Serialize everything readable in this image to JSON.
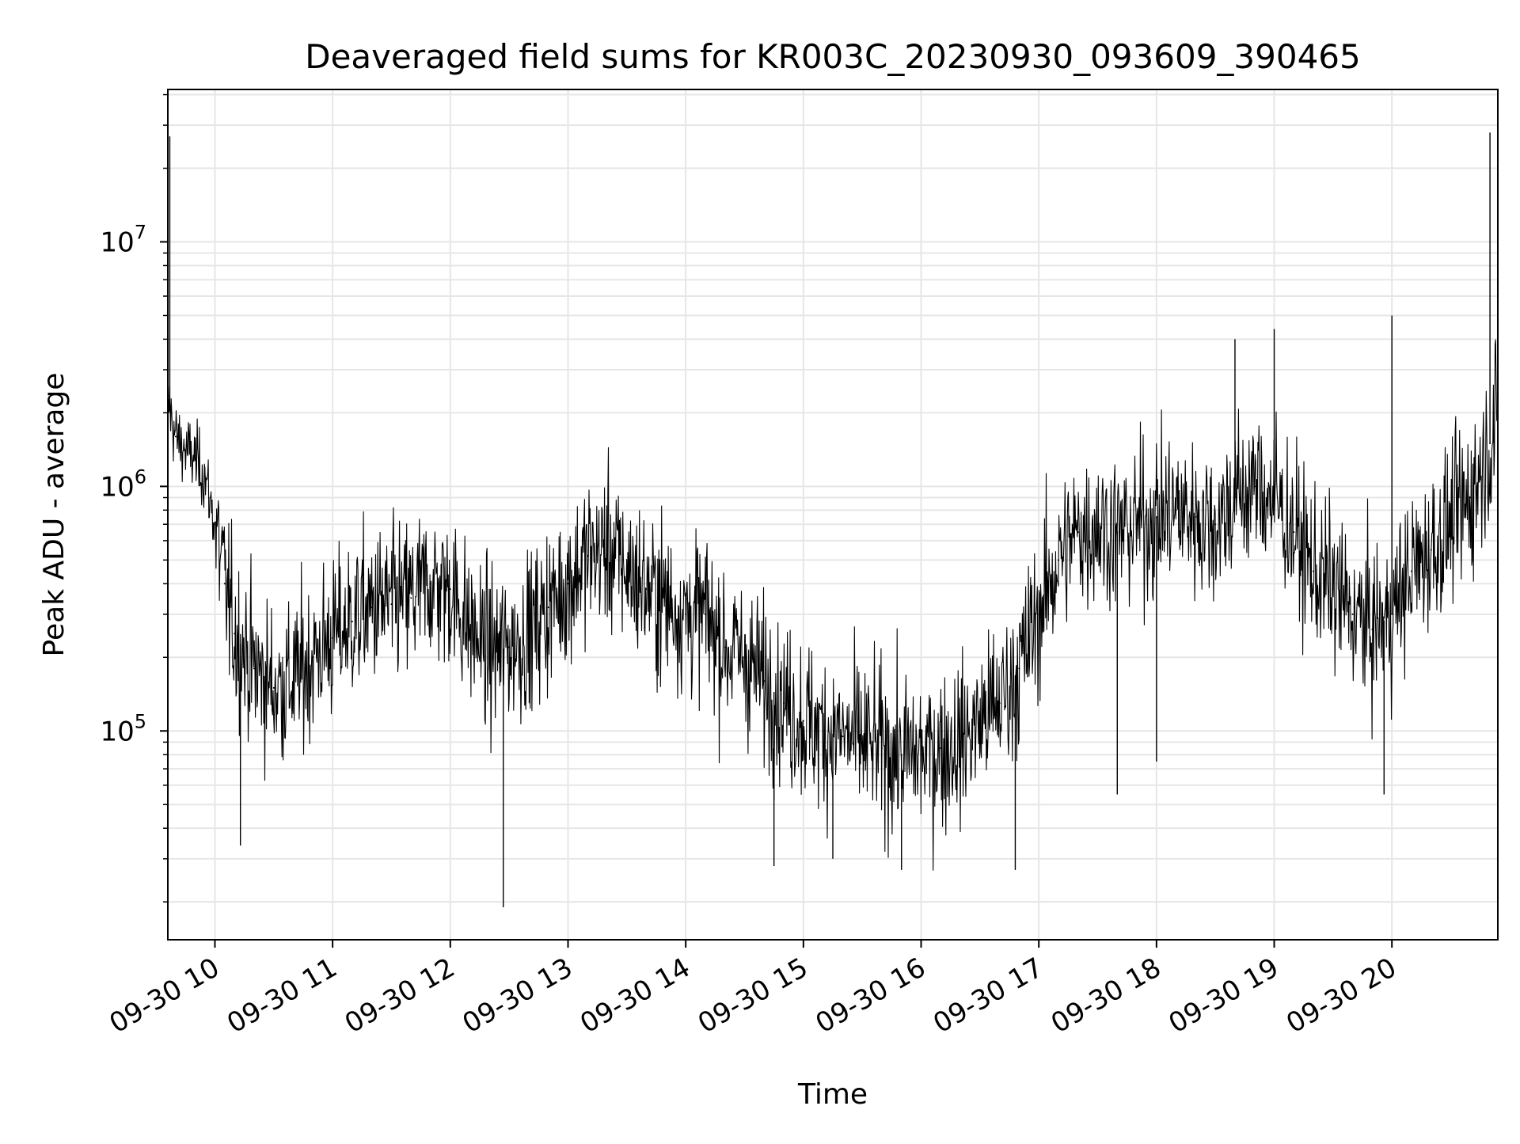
{
  "chart_data": {
    "type": "line",
    "title": "Deaveraged field sums for KR003C_20230930_093609_390465",
    "xlabel": "Time",
    "ylabel": "Peak ADU - average",
    "yscale": "log",
    "ylim": [
      14000,
      42000000
    ],
    "xlim": [
      "09-30 09:36",
      "09-30 20:54"
    ],
    "grid": true,
    "line_color": "#000000",
    "grid_color": "#e6e6e6",
    "x_ticks": [
      "09-30 10",
      "09-30 11",
      "09-30 12",
      "09-30 13",
      "09-30 14",
      "09-30 15",
      "09-30 16",
      "09-30 17",
      "09-30 18",
      "09-30 19",
      "09-30 20"
    ],
    "y_ticks": [
      {
        "value": 100000,
        "base": "10",
        "exp": "5"
      },
      {
        "value": 1000000,
        "base": "10",
        "exp": "6"
      },
      {
        "value": 10000000,
        "base": "10",
        "exp": "7"
      }
    ],
    "series": [
      {
        "x": [
          "09-30 09:36",
          "09-30 09:40",
          "09-30 09:45",
          "09-30 09:50",
          "09-30 09:55",
          "09-30 10:00",
          "09-30 10:05",
          "09-30 10:10",
          "09-30 10:20",
          "09-30 10:30",
          "09-30 10:40",
          "09-30 10:50",
          "09-30 11:00",
          "09-30 11:10",
          "09-30 11:20",
          "09-30 11:30",
          "09-30 11:40",
          "09-30 11:50",
          "09-30 12:00",
          "09-30 12:10",
          "09-30 12:20",
          "09-30 12:30",
          "09-30 12:40",
          "09-30 12:50",
          "09-30 13:00",
          "09-30 13:10",
          "09-30 13:20",
          "09-30 13:30",
          "09-30 13:40",
          "09-30 13:50",
          "09-30 14:00",
          "09-30 14:10",
          "09-30 14:20",
          "09-30 14:30",
          "09-30 14:40",
          "09-30 14:50",
          "09-30 15:00",
          "09-30 15:10",
          "09-30 15:20",
          "09-30 15:30",
          "09-30 15:40",
          "09-30 15:50",
          "09-30 16:00",
          "09-30 16:10",
          "09-30 16:20",
          "09-30 16:30",
          "09-30 16:40",
          "09-30 16:50",
          "09-30 17:00",
          "09-30 17:10",
          "09-30 17:20",
          "09-30 17:30",
          "09-30 17:40",
          "09-30 17:50",
          "09-30 18:00",
          "09-30 18:10",
          "09-30 18:20",
          "09-30 18:30",
          "09-30 18:40",
          "09-30 18:50",
          "09-30 19:00",
          "09-30 19:10",
          "09-30 19:20",
          "09-30 19:30",
          "09-30 19:40",
          "09-30 19:50",
          "09-30 20:00",
          "09-30 20:10",
          "09-30 20:20",
          "09-30 20:30",
          "09-30 20:40",
          "09-30 20:50",
          "09-30 20:54"
        ],
        "y": [
          2200000,
          1600000,
          1400000,
          1300000,
          1100000,
          700000,
          400000,
          250000,
          180000,
          150000,
          160000,
          200000,
          240000,
          280000,
          320000,
          330000,
          350000,
          400000,
          380000,
          260000,
          210000,
          220000,
          250000,
          320000,
          400000,
          520000,
          560000,
          460000,
          380000,
          340000,
          300000,
          300000,
          220000,
          200000,
          160000,
          130000,
          110000,
          100000,
          95000,
          90000,
          85000,
          80000,
          80000,
          85000,
          90000,
          110000,
          130000,
          180000,
          300000,
          500000,
          650000,
          700000,
          650000,
          700000,
          750000,
          800000,
          750000,
          700000,
          900000,
          1000000,
          900000,
          650000,
          450000,
          380000,
          300000,
          260000,
          300000,
          450000,
          550000,
          700000,
          900000,
          1500000,
          1800000
        ]
      }
    ],
    "spikes": [
      {
        "x": "09-30 09:37",
        "y": 27000000
      },
      {
        "x": "09-30 20:50",
        "y": 28000000
      },
      {
        "x": "09-30 12:27",
        "y": 19000
      },
      {
        "x": "09-30 10:13",
        "y": 34000
      },
      {
        "x": "09-30 14:45",
        "y": 28000
      },
      {
        "x": "09-30 15:15",
        "y": 30000
      },
      {
        "x": "09-30 15:50",
        "y": 27000
      },
      {
        "x": "09-30 16:48",
        "y": 27000
      },
      {
        "x": "09-30 17:40",
        "y": 55000
      },
      {
        "x": "09-30 18:00",
        "y": 75000
      },
      {
        "x": "09-30 19:56",
        "y": 55000
      },
      {
        "x": "09-30 18:40",
        "y": 4000000
      },
      {
        "x": "09-30 19:00",
        "y": 4400000
      },
      {
        "x": "09-30 20:00",
        "y": 5000000
      }
    ]
  }
}
